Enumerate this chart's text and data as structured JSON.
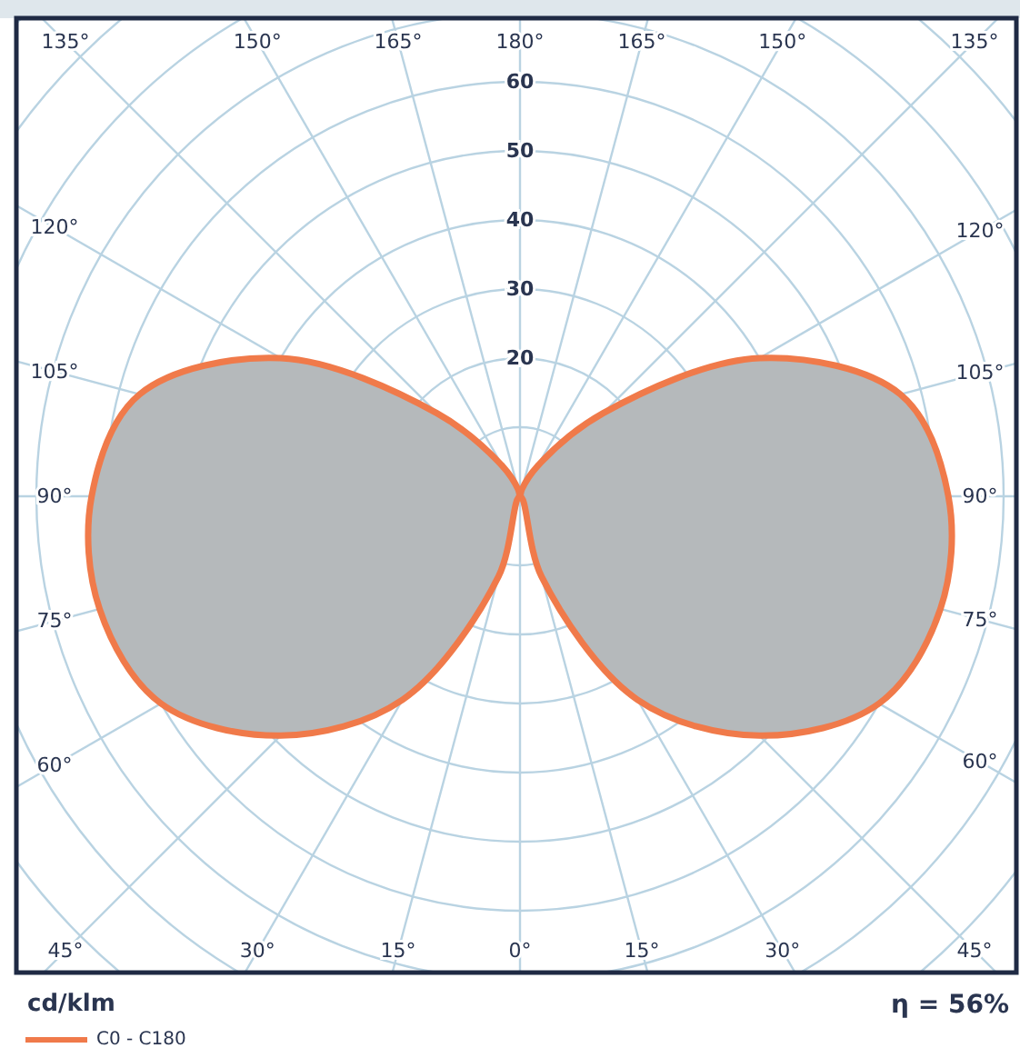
{
  "chart_data": {
    "type": "radar",
    "ylabel": "cd/klm",
    "legend": "bottom left",
    "grid": true,
    "categories": [
      "180°",
      "165°",
      "150°",
      "135°",
      "120°",
      "105°",
      "90°",
      "75°",
      "60°",
      "45°",
      "30°",
      "15°",
      "0°",
      "15°",
      "30°",
      "45°",
      "60°",
      "75°",
      "90°",
      "105°",
      "120°",
      "135°",
      "150°",
      "165°"
    ],
    "ylim": [
      0,
      100
    ],
    "yticks": [
      20,
      30,
      40,
      50,
      60
    ],
    "series": [
      {
        "name": "C0 - C180",
        "color": "#f07a4a",
        "values": [
          0,
          1,
          5,
          17,
          40,
          57,
          62,
          63,
          60,
          49,
          34,
          12,
          0,
          12,
          34,
          49,
          60,
          63,
          62,
          57,
          40,
          17,
          5,
          1
        ]
      }
    ],
    "annotations": [
      "η = 56%"
    ]
  }
}
